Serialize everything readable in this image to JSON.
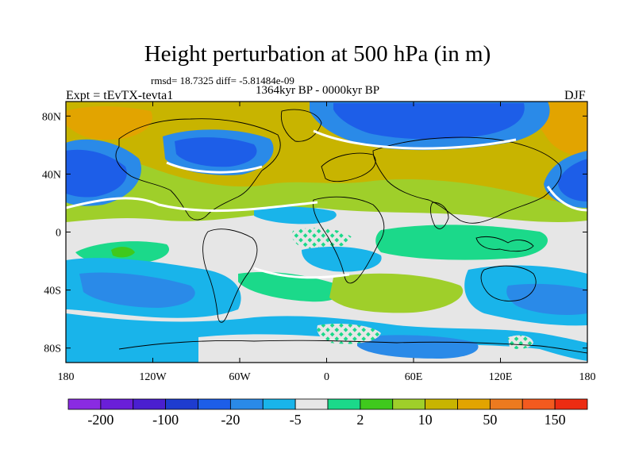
{
  "title": "Height perturbation at 500 hPa (in m)",
  "stats": "rmsd= 18.7325 diff= -5.81484e-09",
  "period": "1364kyr BP - 0000kyr BP",
  "experiment": "Expt = tEvTX-tevta1",
  "season": "DJF",
  "colors": {
    "levels": [
      "#8a2be2",
      "#6a1fd8",
      "#4a1fd0",
      "#1e3ccf",
      "#1d5ee8",
      "#2a8ae8",
      "#19b4ea",
      "#e6e6e6",
      "#1bd98a",
      "#3fc91d",
      "#9fcf2a",
      "#c8b400",
      "#e2a400",
      "#ec7a1f",
      "#f35a1f",
      "#ec2c12"
    ]
  },
  "chart_data": {
    "type": "heatmap",
    "title": "Height perturbation at 500 hPa (in m)",
    "subtitle": "1364kyr BP - 0000kyr BP",
    "annotations": [
      "rmsd= 18.7325 diff= -5.81484e-09",
      "Expt = tEvTX-tevta1",
      "DJF"
    ],
    "x_ticks": [
      "180",
      "120W",
      "60W",
      "0",
      "60E",
      "120E",
      "180"
    ],
    "y_ticks": [
      "80N",
      "40N",
      "0",
      "40S",
      "80S"
    ],
    "xlim": [
      -180,
      180
    ],
    "ylim": [
      -90,
      90
    ],
    "colorbar_labels": [
      "-200",
      "-100",
      "-20",
      "-5",
      "2",
      "10",
      "50",
      "150"
    ],
    "field": [
      {
        "lon": -165,
        "lat": 40,
        "value": -50
      },
      {
        "lon": -85,
        "lat": 58,
        "value": -50
      },
      {
        "lon": 40,
        "lat": 82,
        "value": -50
      },
      {
        "lon": 160,
        "lat": 40,
        "value": -50
      },
      {
        "lon": -120,
        "lat": 70,
        "value": 50
      },
      {
        "lon": -10,
        "lat": 45,
        "value": 10
      },
      {
        "lon": 80,
        "lat": 45,
        "value": 10
      },
      {
        "lon": -60,
        "lat": -25,
        "value": -5
      },
      {
        "lon": 30,
        "lat": -45,
        "value": 10
      },
      {
        "lon": -30,
        "lat": -70,
        "value": -5
      }
    ]
  }
}
